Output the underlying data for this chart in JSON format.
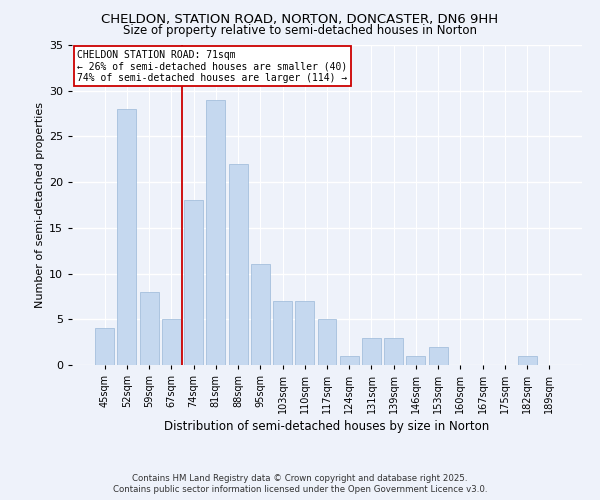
{
  "title_line1": "CHELDON, STATION ROAD, NORTON, DONCASTER, DN6 9HH",
  "title_line2": "Size of property relative to semi-detached houses in Norton",
  "categories": [
    "45sqm",
    "52sqm",
    "59sqm",
    "67sqm",
    "74sqm",
    "81sqm",
    "88sqm",
    "95sqm",
    "103sqm",
    "110sqm",
    "117sqm",
    "124sqm",
    "131sqm",
    "139sqm",
    "146sqm",
    "153sqm",
    "160sqm",
    "167sqm",
    "175sqm",
    "182sqm",
    "189sqm"
  ],
  "values": [
    4,
    28,
    8,
    5,
    18,
    29,
    22,
    11,
    7,
    7,
    5,
    1,
    3,
    3,
    1,
    2,
    0,
    0,
    0,
    1,
    0
  ],
  "bar_color": "#c5d8ef",
  "bar_edge_color": "#9ab8d8",
  "ylabel": "Number of semi-detached properties",
  "xlabel": "Distribution of semi-detached houses by size in Norton",
  "ylim": [
    0,
    35
  ],
  "yticks": [
    0,
    5,
    10,
    15,
    20,
    25,
    30,
    35
  ],
  "annotation_title": "CHELDON STATION ROAD: 71sqm",
  "annotation_line1": "← 26% of semi-detached houses are smaller (40)",
  "annotation_line2": "74% of semi-detached houses are larger (114) →",
  "vline_x_index": 3.5,
  "vline_color": "#cc0000",
  "annotation_box_color": "#cc0000",
  "background_color": "#eef2fa",
  "grid_color": "#ffffff",
  "footer_line1": "Contains HM Land Registry data © Crown copyright and database right 2025.",
  "footer_line2": "Contains public sector information licensed under the Open Government Licence v3.0."
}
